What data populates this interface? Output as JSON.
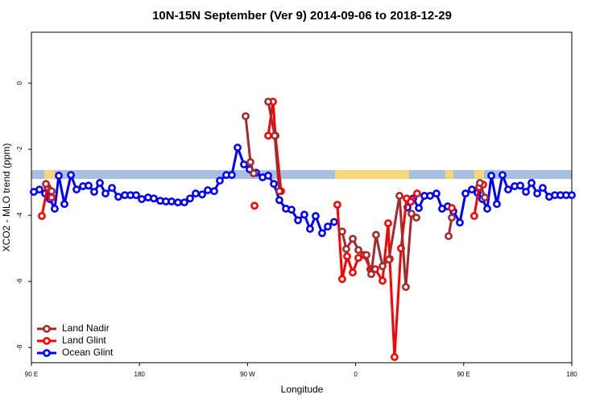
{
  "chart_data": {
    "type": "line",
    "title": "10N-15N September (Ver 9)   2014-09-06 to 2018-12-29",
    "x_label": "Longitude",
    "y_label": "XCO2 - MLO trend (ppm)",
    "xlim": [
      90,
      540
    ],
    "ylim": [
      -8.46,
      1.54
    ],
    "xticks": [
      {
        "value": 90,
        "label": "90 E"
      },
      {
        "value": 180,
        "label": "180"
      },
      {
        "value": 270,
        "label": "90 W"
      },
      {
        "value": 360,
        "label": "0"
      },
      {
        "value": 450,
        "label": "90 E"
      },
      {
        "value": 540,
        "label": "180"
      }
    ],
    "yticks": [
      0,
      -2,
      -4,
      -6,
      -8
    ],
    "legend": "bottom-left",
    "series": [
      {
        "name": "Land Nadir",
        "color": "#a52a2a",
        "x": [
          102.1,
          106.8,
          null,
          268.4,
          272.4,
          275.1,
          null,
          287.2,
          292.6,
          296.5,
          null,
          348.8,
          352.2,
          357.6,
          362.3,
          369.0,
          373.0,
          377.0,
          382.4,
          387.7,
          396.5,
          401.8,
          406.5,
          410.6,
          null,
          437.4,
          440.1,
          null,
          463.5,
          467.6
        ],
        "values": [
          -3.05,
          -3.27,
          null,
          -1.0,
          -2.39,
          -2.73,
          null,
          -0.56,
          -1.59,
          -3.27,
          null,
          -4.49,
          -5.02,
          -4.71,
          -5.05,
          -5.2,
          -5.78,
          -4.59,
          -5.54,
          -5.34,
          -3.41,
          -6.17,
          -3.95,
          -4.07,
          null,
          -4.63,
          -4.07,
          null,
          -3.02,
          -3.46
        ]
      },
      {
        "name": "Land Glint",
        "color": "#ff0000",
        "x": [
          98.7,
          103.4,
          106.8,
          null,
          275.8,
          null,
          287.2,
          291.2,
          293.2,
          297.9,
          null,
          344.8,
          348.8,
          352.9,
          357.6,
          362.3,
          367.0,
          372.3,
          376.3,
          382.4,
          387.1,
          388.4,
          392.4,
          397.8,
          402.5,
          405.9,
          411.2,
          null,
          440.1,
          null,
          458.8,
          462.8,
          466.2
        ],
        "values": [
          -4.02,
          -3.15,
          -3.46,
          null,
          -3.71,
          null,
          -1.59,
          -0.56,
          -1.59,
          -3.27,
          null,
          -3.68,
          -5.93,
          -5.24,
          -5.73,
          -5.29,
          -5.2,
          -5.63,
          -5.63,
          -5.98,
          -4.24,
          -5.32,
          -8.29,
          -5.0,
          -3.49,
          -3.59,
          -3.34,
          null,
          -3.78,
          null,
          -4.02,
          -3.15,
          -3.07
        ]
      },
      {
        "name": "Ocean Glint",
        "color": "#0000ff",
        "x": [
          92.0,
          96.7,
          101.4,
          105.4,
          109.4,
          112.8,
          117.5,
          122.9,
          127.6,
          132.9,
          137.6,
          142.3,
          147.0,
          151.7,
          157.1,
          162.4,
          167.8,
          172.5,
          177.2,
          181.9,
          187.2,
          191.9,
          197.3,
          202.0,
          206.7,
          212.0,
          217.4,
          222.1,
          226.8,
          232.2,
          236.9,
          242.2,
          246.9,
          252.3,
          256.9,
          261.7,
          267.0,
          271.7,
          277.1,
          282.5,
          287.2,
          291.9,
          296.5,
          301.9,
          306.6,
          312.0,
          317.3,
          322.0,
          326.7,
          332.1,
          336.8,
          342.1,
          null,
          403.2,
          407.9,
          412.6,
          417.3,
          422.0,
          427.3,
          432.0,
          436.7,
          441.4,
          446.8,
          451.5,
          456.8,
          461.5,
          465.5,
          469.6,
          473.0,
          477.6,
          482.3,
          487.0,
          492.4,
          497.1,
          501.8,
          506.5,
          511.2,
          515.8,
          521.2,
          525.9,
          530.6,
          535.3,
          540.0
        ],
        "values": [
          -3.29,
          -3.22,
          -3.34,
          -3.51,
          -3.8,
          -2.8,
          -3.66,
          -2.78,
          -3.22,
          -3.12,
          -3.1,
          -3.29,
          -3.02,
          -3.34,
          -3.17,
          -3.44,
          -3.39,
          -3.39,
          -3.39,
          -3.51,
          -3.46,
          -3.49,
          -3.56,
          -3.58,
          -3.58,
          -3.61,
          -3.61,
          -3.49,
          -3.34,
          -3.37,
          -3.24,
          -3.27,
          -2.95,
          -2.78,
          -2.78,
          -1.95,
          -2.46,
          -2.61,
          -2.71,
          -2.85,
          -2.8,
          -3.05,
          -3.54,
          -3.8,
          -3.83,
          -4.15,
          -3.98,
          -4.41,
          -4.02,
          -4.54,
          -4.34,
          -4.2,
          null,
          -3.76,
          -3.49,
          -3.78,
          -3.41,
          -3.41,
          -3.34,
          -3.8,
          -3.73,
          -3.88,
          -4.22,
          -3.34,
          -3.22,
          -3.32,
          -3.51,
          -3.8,
          -2.8,
          -3.66,
          -2.78,
          -3.22,
          -3.12,
          -3.1,
          -3.29,
          -3.02,
          -3.34,
          -3.17,
          -3.44,
          -3.39,
          -3.39,
          -3.39,
          -3.39
        ]
      }
    ]
  }
}
